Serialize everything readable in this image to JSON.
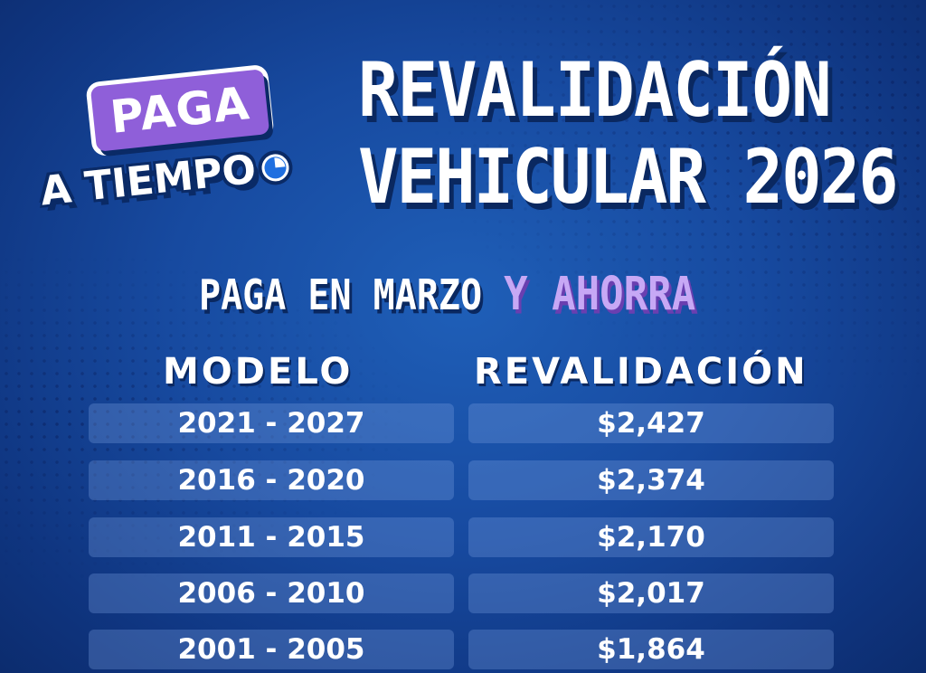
{
  "badge": {
    "line1": "PAGA",
    "line2": "A TIEMPO"
  },
  "title": {
    "line1": "REVALIDACIÓN",
    "line2": "VEHICULAR 2026"
  },
  "subtitle": {
    "part1": "PAGA EN MARZO",
    "part2": "Y AHORRA"
  },
  "table": {
    "headers": [
      "MODELO",
      "REVALIDACIÓN"
    ],
    "rows": [
      {
        "modelo": "2021 - 2027",
        "revalidacion": "$2,427"
      },
      {
        "modelo": "2016 - 2020",
        "revalidacion": "$2,374"
      },
      {
        "modelo": "2011 - 2015",
        "revalidacion": "$2,170"
      },
      {
        "modelo": "2006 - 2010",
        "revalidacion": "$2,017"
      },
      {
        "modelo": "2001 - 2005",
        "revalidacion": "$1,864"
      }
    ]
  },
  "colors": {
    "background": "#174aa0",
    "accent_purple": "#8f5fd9",
    "text": "#ffffff",
    "row_fill": "rgba(120,160,225,0.32)"
  },
  "icons": [
    "clock-icon"
  ]
}
